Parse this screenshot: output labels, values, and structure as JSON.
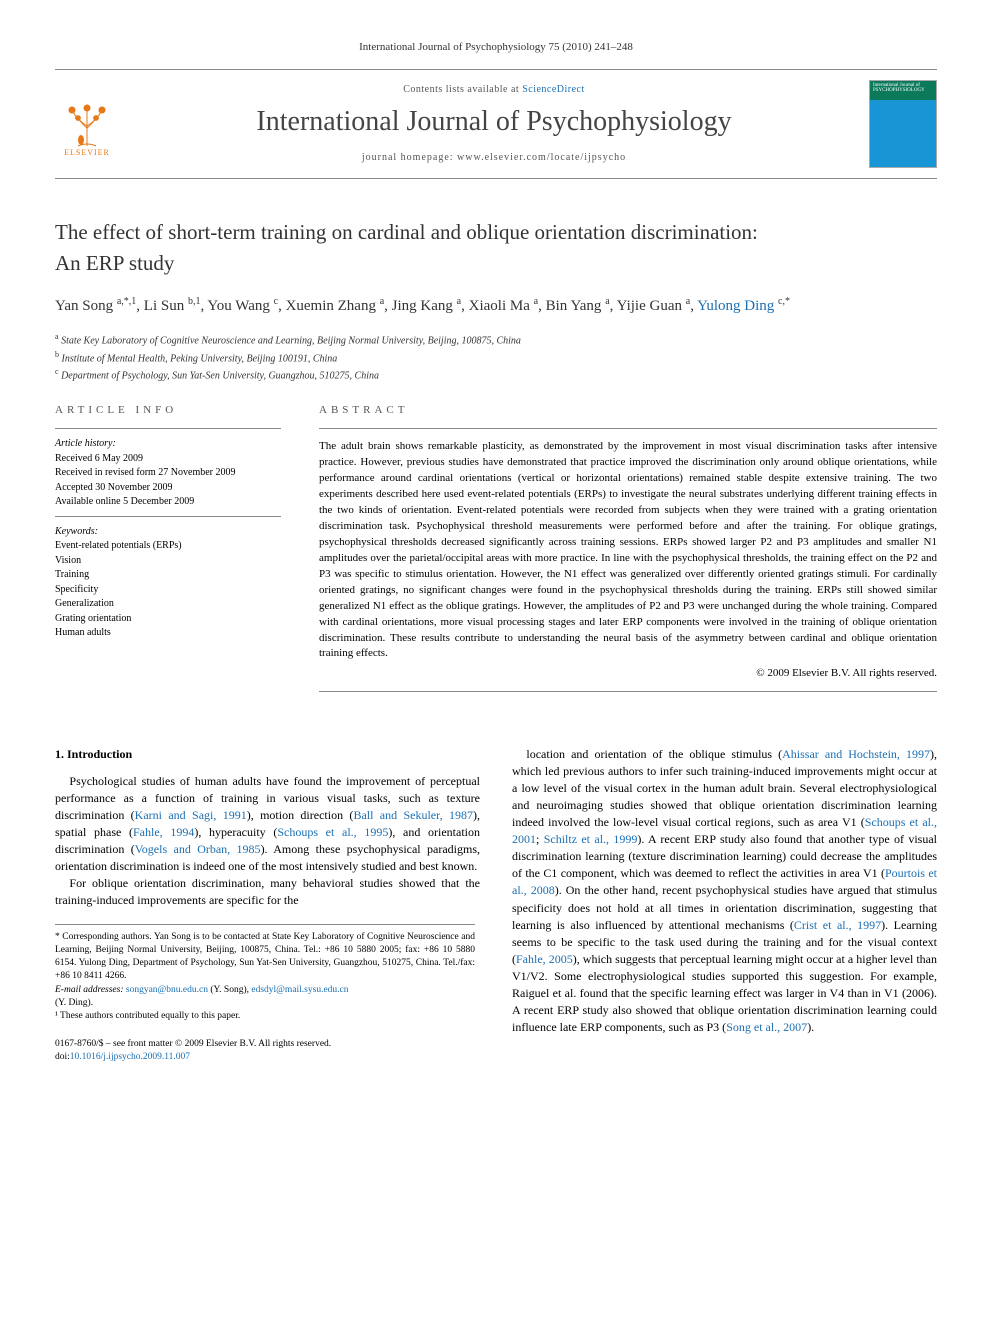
{
  "header_line": "International Journal of Psychophysiology 75 (2010) 241–248",
  "masthead": {
    "contents_prefix": "Contents lists available at ",
    "contents_link": "ScienceDirect",
    "journal_title": "International Journal of Psychophysiology",
    "homepage_prefix": "journal homepage: ",
    "homepage": "www.elsevier.com/locate/ijpsycho",
    "publisher": "ELSEVIER",
    "cover_label": "International Journal of\nPSYCHOPHYSIOLOGY"
  },
  "title_line1": "The effect of short-term training on cardinal and oblique orientation discrimination:",
  "title_line2": "An ERP study",
  "authors_html_parts": [
    {
      "name": "Yan Song",
      "sup": "a,*,1"
    },
    {
      "name": "Li Sun",
      "sup": "b,1"
    },
    {
      "name": "You Wang",
      "sup": "c"
    },
    {
      "name": "Xuemin Zhang",
      "sup": "a"
    },
    {
      "name": "Jing Kang",
      "sup": "a"
    },
    {
      "name": "Xiaoli Ma",
      "sup": "a"
    },
    {
      "name": "Bin Yang",
      "sup": "a"
    },
    {
      "name": "Yijie Guan",
      "sup": "a"
    },
    {
      "name": "Yulong Ding",
      "sup": "c,*",
      "link": true
    }
  ],
  "affiliations": [
    {
      "key": "a",
      "text": "State Key Laboratory of Cognitive Neuroscience and Learning, Beijing Normal University, Beijing, 100875, China"
    },
    {
      "key": "b",
      "text": "Institute of Mental Health, Peking University, Beijing 100191, China"
    },
    {
      "key": "c",
      "text": "Department of Psychology, Sun Yat-Sen University, Guangzhou, 510275, China"
    }
  ],
  "info": {
    "heading_info": "article info",
    "heading_abs": "abstract",
    "history_label": "Article history:",
    "history": [
      "Received 6 May 2009",
      "Received in revised form 27 November 2009",
      "Accepted 30 November 2009",
      "Available online 5 December 2009"
    ],
    "keywords_label": "Keywords:",
    "keywords": [
      "Event-related potentials (ERPs)",
      "Vision",
      "Training",
      "Specificity",
      "Generalization",
      "Grating orientation",
      "Human adults"
    ]
  },
  "abstract_text": "The adult brain shows remarkable plasticity, as demonstrated by the improvement in most visual discrimination tasks after intensive practice. However, previous studies have demonstrated that practice improved the discrimination only around oblique orientations, while performance around cardinal orientations (vertical or horizontal orientations) remained stable despite extensive training. The two experiments described here used event-related potentials (ERPs) to investigate the neural substrates underlying different training effects in the two kinds of orientation. Event-related potentials were recorded from subjects when they were trained with a grating orientation discrimination task. Psychophysical threshold measurements were performed before and after the training. For oblique gratings, psychophysical thresholds decreased significantly across training sessions. ERPs showed larger P2 and P3 amplitudes and smaller N1 amplitudes over the parietal/occipital areas with more practice. In line with the psychophysical thresholds, the training effect on the P2 and P3 was specific to stimulus orientation. However, the N1 effect was generalized over differently oriented gratings stimuli. For cardinally oriented gratings, no significant changes were found in the psychophysical thresholds during the training. ERPs still showed similar generalized N1 effect as the oblique gratings. However, the amplitudes of P2 and P3 were unchanged during the whole training. Compared with cardinal orientations, more visual processing stages and later ERP components were involved in the training of oblique orientation discrimination. These results contribute to understanding the neural basis of the asymmetry between cardinal and oblique orientation training effects.",
  "abstract_copyright": "© 2009 Elsevier B.V. All rights reserved.",
  "section1_heading": "1. Introduction",
  "para1_a": "Psychological studies of human adults have found the improvement of perceptual performance as a function of training in various visual tasks, such as texture discrimination (",
  "para1_l1": "Karni and Sagi, 1991",
  "para1_b": "), motion direction (",
  "para1_l2": "Ball and Sekuler, 1987",
  "para1_c": "), spatial phase (",
  "para1_l3": "Fahle, 1994",
  "para1_d": "), hyperacuity (",
  "para1_l4": "Schoups et al., 1995",
  "para1_e": "), and orientation discrimination (",
  "para1_l5": "Vogels and Orban, 1985",
  "para1_f": "). Among these psychophysical paradigms, orientation discrimination is indeed one of the most intensively studied and best known.",
  "para2_a": "For oblique orientation discrimination, many behavioral studies showed that the training-induced improvements are specific for the",
  "para3_a": "location and orientation of the oblique stimulus (",
  "para3_l1": "Ahissar and Hochstein, 1997",
  "para3_b": "), which led previous authors to infer such training-induced improvements might occur at a low level of the visual cortex in the human adult brain. Several electrophysiological and neuroimaging studies showed that oblique orientation discrimination learning indeed involved the low-level visual cortical regions, such as area V1 (",
  "para3_l2": "Schoups et al., 2001",
  "para3_c": "; ",
  "para3_l3": "Schiltz et al., 1999",
  "para3_d": "). A recent ERP study also found that another type of visual discrimination learning (texture discrimination learning) could decrease the amplitudes of the C1 component, which was deemed to reflect the activities in area V1 (",
  "para3_l4": "Pourtois et al., 2008",
  "para3_e": "). On the other hand, recent psychophysical studies have argued that stimulus specificity does not hold at all times in orientation discrimination, suggesting that learning is also influenced by attentional mechanisms (",
  "para3_l5": "Crist et al., 1997",
  "para3_f": "). Learning seems to be specific to the task used during the training and for the visual context (",
  "para3_l6": "Fahle, 2005",
  "para3_g": "), which suggests that perceptual learning might occur at a higher level than V1/V2. Some electrophysiological studies supported this suggestion. For example, Raiguel et al. found that the specific learning effect was larger in V4 than in V1 (2006). A recent ERP study also showed that oblique orientation discrimination learning could influence late ERP components, such as P3 (",
  "para3_l7": "Song et al., 2007",
  "para3_h": ").",
  "footnotes": {
    "corr": "* Corresponding authors. Yan Song is to be contacted at State Key Laboratory of Cognitive Neuroscience and Learning, Beijing Normal University, Beijing, 100875, China. Tel.: +86 10 5880 2005; fax: +86 10 5880 6154. Yulong Ding, Department of Psychology, Sun Yat-Sen University, Guangzhou, 510275, China. Tel./fax: +86 10 8411 4266.",
    "email_label": "E-mail addresses: ",
    "email1": "songyan@bnu.edu.cn",
    "email1_who": " (Y. Song), ",
    "email2": "edsdyl@mail.sysu.edu.cn",
    "email2_who": " (Y. Ding).",
    "equal": "¹ These authors contributed equally to this paper."
  },
  "footer": {
    "issn": "0167-8760/$ – see front matter © 2009 Elsevier B.V. All rights reserved.",
    "doi_label": "doi:",
    "doi": "10.1016/j.ijpsycho.2009.11.007"
  },
  "colors": {
    "link": "#1b6fb3",
    "elsevier_orange": "#e67817",
    "cover_green": "#0a7a5a",
    "cover_blue": "#1795d4"
  }
}
